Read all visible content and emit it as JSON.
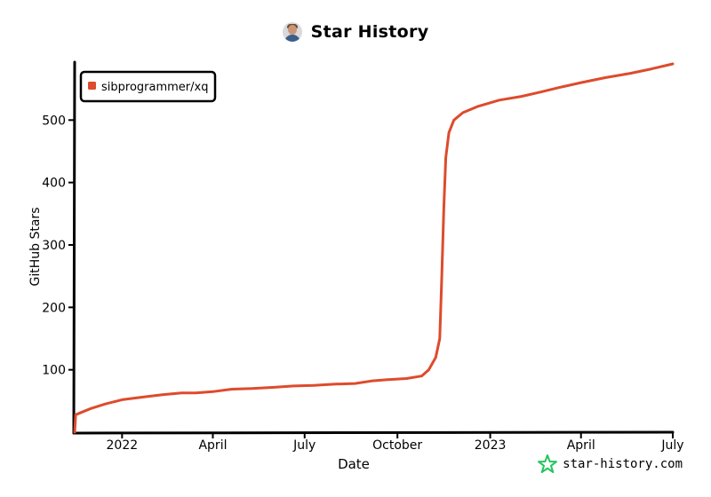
{
  "header": {
    "title": "Star History"
  },
  "brand": {
    "text": "star-history.com",
    "accent": "#22c55e"
  },
  "chart_data": {
    "type": "line",
    "xlabel": "Date",
    "ylabel": "GitHub Stars",
    "ylim": [
      0,
      590
    ],
    "yticks": [
      100,
      200,
      300,
      400,
      500
    ],
    "xlim": [
      "2021-11-15",
      "2023-07-01"
    ],
    "xticks": [
      {
        "date": "2022-01-01",
        "label": "2022"
      },
      {
        "date": "2022-04-01",
        "label": "April"
      },
      {
        "date": "2022-07-01",
        "label": "July"
      },
      {
        "date": "2022-10-01",
        "label": "October"
      },
      {
        "date": "2023-01-01",
        "label": "2023"
      },
      {
        "date": "2023-04-01",
        "label": "April"
      },
      {
        "date": "2023-07-01",
        "label": "July"
      }
    ],
    "grid": false,
    "legend": "top-left",
    "series": [
      {
        "name": "sibprogrammer/xq",
        "color": "#dd4b2c",
        "points": [
          [
            "2021-11-15",
            0
          ],
          [
            "2021-11-16",
            28
          ],
          [
            "2021-12-01",
            38
          ],
          [
            "2021-12-15",
            45
          ],
          [
            "2022-01-01",
            52
          ],
          [
            "2022-01-20",
            56
          ],
          [
            "2022-02-10",
            60
          ],
          [
            "2022-03-01",
            63
          ],
          [
            "2022-03-15",
            63
          ],
          [
            "2022-04-01",
            65
          ],
          [
            "2022-04-20",
            69
          ],
          [
            "2022-05-10",
            70
          ],
          [
            "2022-06-01",
            72
          ],
          [
            "2022-06-20",
            74
          ],
          [
            "2022-07-10",
            75
          ],
          [
            "2022-08-01",
            77
          ],
          [
            "2022-08-20",
            78
          ],
          [
            "2022-09-05",
            82
          ],
          [
            "2022-09-20",
            84
          ],
          [
            "2022-10-10",
            86
          ],
          [
            "2022-10-25",
            90
          ],
          [
            "2022-11-01",
            100
          ],
          [
            "2022-11-08",
            120
          ],
          [
            "2022-11-12",
            150
          ],
          [
            "2022-11-14",
            250
          ],
          [
            "2022-11-16",
            360
          ],
          [
            "2022-11-18",
            440
          ],
          [
            "2022-11-21",
            480
          ],
          [
            "2022-11-26",
            500
          ],
          [
            "2022-12-05",
            512
          ],
          [
            "2022-12-20",
            522
          ],
          [
            "2023-01-10",
            532
          ],
          [
            "2023-02-01",
            538
          ],
          [
            "2023-02-20",
            545
          ],
          [
            "2023-03-10",
            552
          ],
          [
            "2023-04-01",
            560
          ],
          [
            "2023-04-25",
            568
          ],
          [
            "2023-05-20",
            575
          ],
          [
            "2023-06-10",
            582
          ],
          [
            "2023-07-01",
            590
          ]
        ]
      }
    ]
  }
}
